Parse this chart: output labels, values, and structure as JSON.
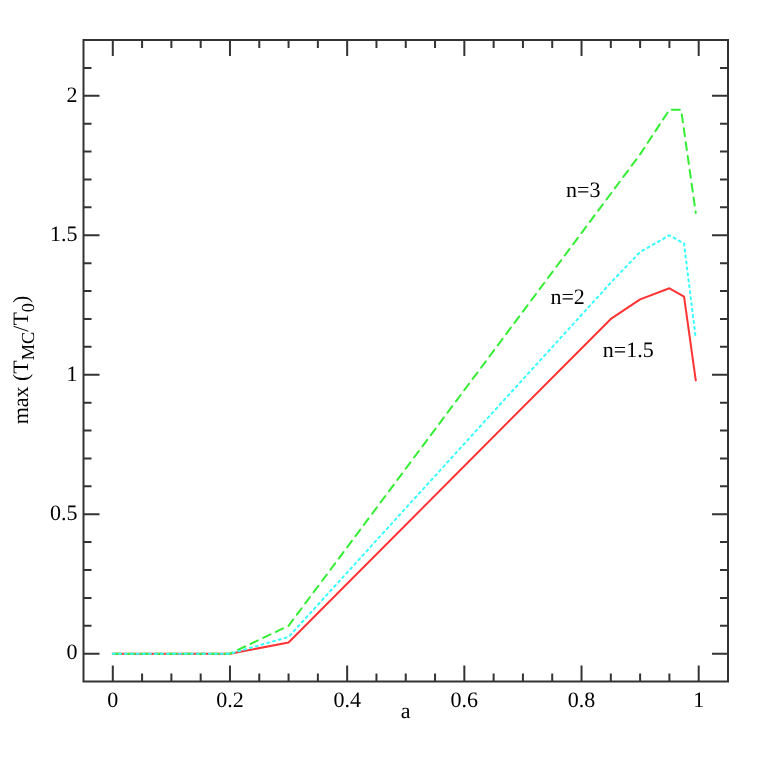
{
  "chart_data": {
    "type": "line",
    "xlabel": "a",
    "ylabel": "max (T$_{MC}$/T$_{0}$)",
    "xlim": [
      -0.05,
      1.05
    ],
    "ylim": [
      -0.1,
      2.2
    ],
    "xticks": [
      0,
      {
        "value": 0.05,
        "label": null
      },
      {
        "value": 0.1,
        "label": null
      },
      {
        "value": 0.15,
        "label": null
      },
      0.2,
      {
        "value": 0.25,
        "label": null
      },
      {
        "value": 0.3,
        "label": null
      },
      {
        "value": 0.35,
        "label": null
      },
      0.4,
      {
        "value": 0.45,
        "label": null
      },
      {
        "value": 0.5,
        "label": null
      },
      {
        "value": 0.55,
        "label": null
      },
      0.6,
      {
        "value": 0.65,
        "label": null
      },
      {
        "value": 0.7,
        "label": null
      },
      {
        "value": 0.75,
        "label": null
      },
      0.8,
      {
        "value": 0.85,
        "label": null
      },
      {
        "value": 0.9,
        "label": null
      },
      {
        "value": 0.95,
        "label": null
      },
      1
    ],
    "yticks": [
      0,
      {
        "value": 0.1,
        "label": null
      },
      {
        "value": 0.2,
        "label": null
      },
      {
        "value": 0.3,
        "label": null
      },
      {
        "value": 0.4,
        "label": null
      },
      0.5,
      {
        "value": 0.6,
        "label": null
      },
      {
        "value": 0.7,
        "label": null
      },
      {
        "value": 0.8,
        "label": null
      },
      {
        "value": 0.9,
        "label": null
      },
      1,
      {
        "value": 1.1,
        "label": null
      },
      {
        "value": 1.2,
        "label": null
      },
      {
        "value": 1.3,
        "label": null
      },
      {
        "value": 1.4,
        "label": null
      },
      1.5,
      {
        "value": 1.6,
        "label": null
      },
      {
        "value": 1.7,
        "label": null
      },
      {
        "value": 1.8,
        "label": null
      },
      {
        "value": 1.9,
        "label": null
      },
      2,
      {
        "value": 2.1,
        "label": null
      }
    ],
    "grid": false,
    "legend": false,
    "marker": "none",
    "series": [
      {
        "name": "n=1.5",
        "color": "#ff3333",
        "line_style": "solid",
        "x": [
          0,
          0.2,
          0.3,
          0.85,
          0.9,
          0.95,
          0.975,
          0.995
        ],
        "values": [
          0,
          0,
          0.04,
          1.2,
          1.27,
          1.31,
          1.28,
          0.98
        ]
      },
      {
        "name": "n=2",
        "color": "#33ffff",
        "line_style": "dotted",
        "x": [
          0,
          0.2,
          0.3,
          0.85,
          0.9,
          0.95,
          0.975,
          0.995
        ],
        "values": [
          0,
          0,
          0.06,
          1.33,
          1.44,
          1.5,
          1.47,
          1.13
        ]
      },
      {
        "name": "n=3",
        "color": "#33ee33",
        "line_style": "dashed",
        "x": [
          0,
          0.2,
          0.3,
          0.9,
          0.95,
          0.97,
          0.995
        ],
        "values": [
          0,
          0,
          0.1,
          1.79,
          1.95,
          1.95,
          1.58
        ]
      }
    ]
  }
}
